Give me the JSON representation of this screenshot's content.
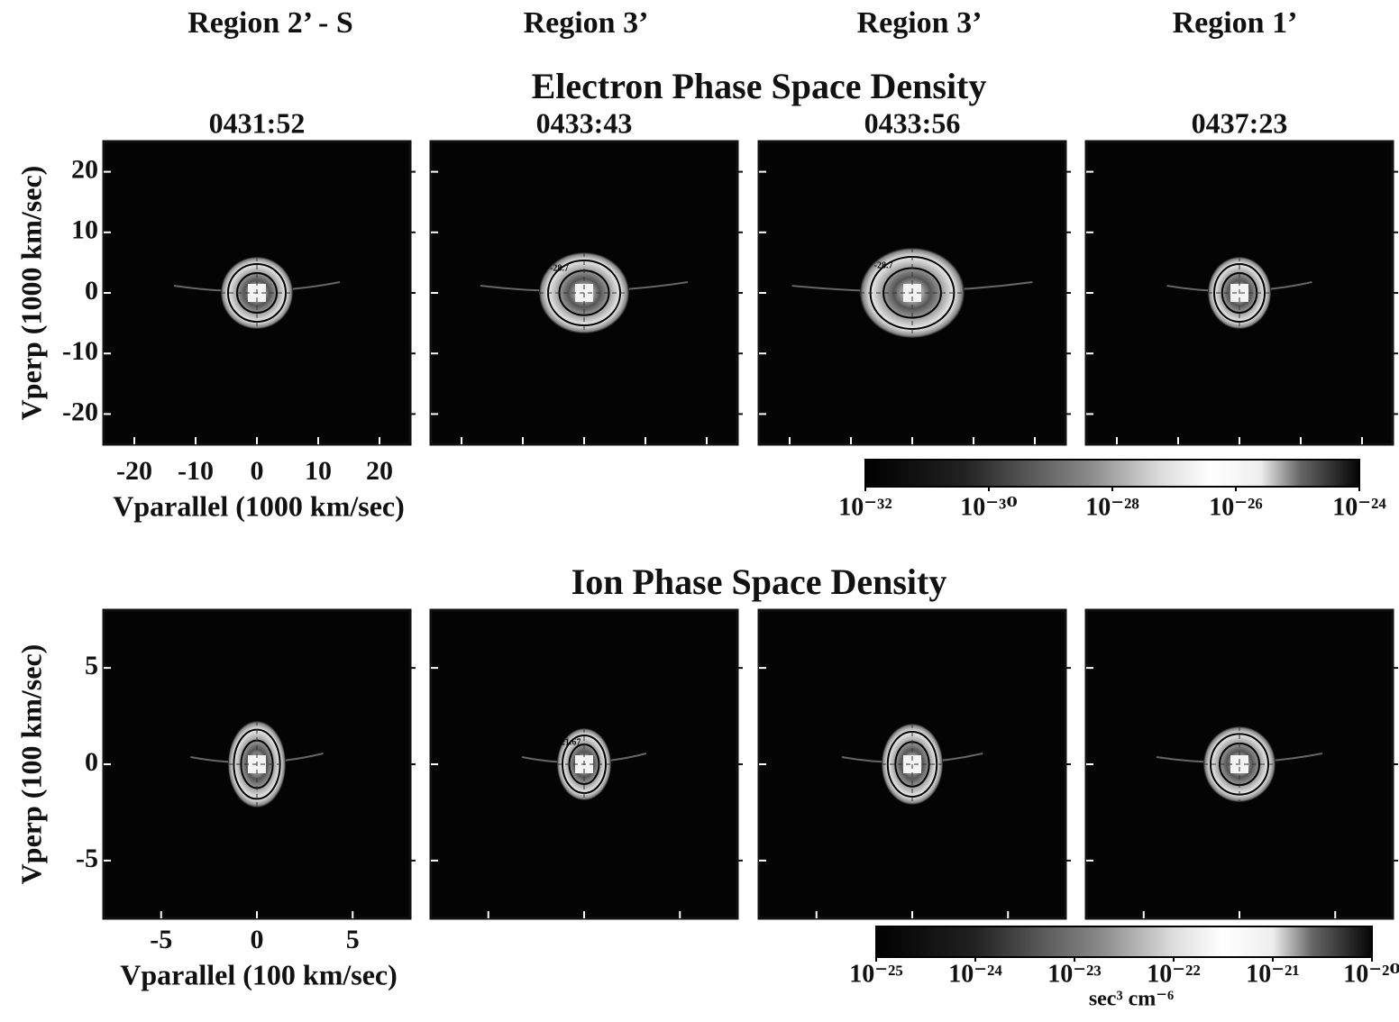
{
  "column_labels": [
    "Region 2’ - S",
    "Region 3’",
    "Region 3’",
    "Region 1’"
  ],
  "chart_data": [
    {
      "type": "heatmap",
      "title": "Electron Phase Space Density",
      "panels": [
        {
          "title": "0431:52"
        },
        {
          "title": "0433:43",
          "contour_label": "-28.7"
        },
        {
          "title": "0433:56",
          "contour_label": "-28.7"
        },
        {
          "title": "0437:23"
        }
      ],
      "xlabel": "Vparallel  (1000 km/sec)",
      "ylabel": "Vperp (1000 km/sec)",
      "xlim": [
        -25,
        25
      ],
      "ylim": [
        -25,
        25
      ],
      "xticks": [
        -20,
        -10,
        0,
        10,
        20
      ],
      "yticks": [
        -20,
        -10,
        0,
        10,
        20
      ],
      "colorbar": {
        "log": true,
        "lim": [
          1e-32,
          1e-24
        ],
        "ticks": [
          {
            "value": 1e-32,
            "label": "10⁻³²"
          },
          {
            "value": 1e-30,
            "label": "10⁻³⁰"
          },
          {
            "value": 1e-28,
            "label": "10⁻²⁸"
          },
          {
            "value": 1e-26,
            "label": "10⁻²⁶"
          },
          {
            "value": 1e-24,
            "label": "10⁻²⁴"
          }
        ]
      }
    },
    {
      "type": "heatmap",
      "title": "Ion Phase Space Density",
      "panels": [
        {},
        {
          "contour_label": "-21.67"
        },
        {},
        {}
      ],
      "xlabel": "Vparallel  (100 km/sec)",
      "ylabel": "Vperp (100 km/sec)",
      "xlim": [
        -8,
        8
      ],
      "ylim": [
        -8,
        8
      ],
      "xticks": [
        -5,
        0,
        5
      ],
      "yticks": [
        -5,
        0,
        5
      ],
      "colorbar": {
        "log": true,
        "lim": [
          1e-25,
          1e-20
        ],
        "unit": "sec³ cm⁻⁶",
        "ticks": [
          {
            "value": 1e-25,
            "label": "10⁻²⁵"
          },
          {
            "value": 1e-24,
            "label": "10⁻²⁴"
          },
          {
            "value": 1e-23,
            "label": "10⁻²³"
          },
          {
            "value": 1e-22,
            "label": "10⁻²²"
          },
          {
            "value": 1e-21,
            "label": "10⁻²¹"
          },
          {
            "value": 1e-20,
            "label": "10⁻²⁰"
          }
        ]
      }
    }
  ]
}
